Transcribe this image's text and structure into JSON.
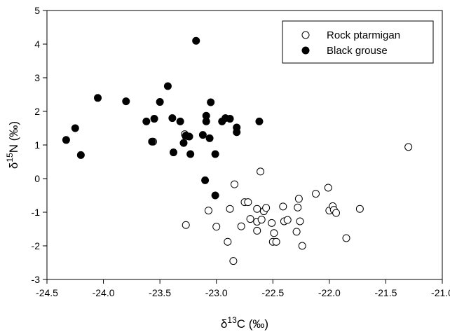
{
  "chart_data": {
    "type": "scatter",
    "title": "",
    "xlabel": {
      "prefix": "δ",
      "sup": "13",
      "rest": "C (‰)"
    },
    "ylabel": {
      "prefix": "δ",
      "sup": "15",
      "rest": "N (‰)"
    },
    "xlim": [
      -24.5,
      -21.0
    ],
    "ylim": [
      -3,
      5
    ],
    "xticks": [
      -24.5,
      -24.0,
      -23.5,
      -23.0,
      -22.5,
      -22.0,
      -21.5,
      -21.0
    ],
    "xtick_labels": [
      "-24.5",
      "-24.0",
      "-23.5",
      "-23.0",
      "-22.5",
      "-22.0",
      "-21.5",
      "-21.0"
    ],
    "yticks": [
      -3,
      -2,
      -1,
      0,
      1,
      2,
      3,
      4,
      5
    ],
    "ytick_labels": [
      "-3",
      "-2",
      "-1",
      "0",
      "1",
      "2",
      "3",
      "4",
      "5"
    ],
    "grid": false,
    "legend_position": "top-right",
    "series": [
      {
        "name": "Rock ptarmigan",
        "marker": "open-circle",
        "color": "#000000",
        "points": [
          [
            -23.28,
            1.32
          ],
          [
            -23.27,
            1.25
          ],
          [
            -23.56,
            1.1
          ],
          [
            -23.27,
            -1.38
          ],
          [
            -23.07,
            -0.95
          ],
          [
            -23.0,
            -1.43
          ],
          [
            -22.9,
            -1.88
          ],
          [
            -22.88,
            -0.9
          ],
          [
            -22.85,
            -2.45
          ],
          [
            -22.84,
            -0.17
          ],
          [
            -22.78,
            -1.42
          ],
          [
            -22.75,
            -0.7
          ],
          [
            -22.72,
            -0.7
          ],
          [
            -22.7,
            -1.2
          ],
          [
            -22.64,
            -0.9
          ],
          [
            -22.64,
            -1.28
          ],
          [
            -22.64,
            -1.55
          ],
          [
            -22.61,
            0.21
          ],
          [
            -22.6,
            -1.22
          ],
          [
            -22.58,
            -0.97
          ],
          [
            -22.56,
            -0.87
          ],
          [
            -22.51,
            -1.32
          ],
          [
            -22.5,
            -1.88
          ],
          [
            -22.49,
            -1.62
          ],
          [
            -22.47,
            -1.88
          ],
          [
            -22.41,
            -0.83
          ],
          [
            -22.4,
            -1.27
          ],
          [
            -22.37,
            -1.23
          ],
          [
            -22.29,
            -1.58
          ],
          [
            -22.28,
            -0.86
          ],
          [
            -22.27,
            -0.6
          ],
          [
            -22.26,
            -1.27
          ],
          [
            -22.24,
            -2.0
          ],
          [
            -22.12,
            -0.45
          ],
          [
            -22.01,
            -0.27
          ],
          [
            -22.0,
            -0.95
          ],
          [
            -21.97,
            -0.82
          ],
          [
            -21.96,
            -0.93
          ],
          [
            -21.94,
            -1.02
          ],
          [
            -21.85,
            -1.77
          ],
          [
            -21.73,
            -0.9
          ],
          [
            -21.3,
            0.94
          ]
        ]
      },
      {
        "name": "Black grouse",
        "marker": "filled-circle",
        "color": "#000000",
        "points": [
          [
            -24.33,
            1.15
          ],
          [
            -24.25,
            1.5
          ],
          [
            -24.2,
            0.7
          ],
          [
            -24.05,
            2.4
          ],
          [
            -23.8,
            2.3
          ],
          [
            -23.62,
            1.7
          ],
          [
            -23.57,
            1.1
          ],
          [
            -23.55,
            1.78
          ],
          [
            -23.5,
            2.28
          ],
          [
            -23.43,
            2.75
          ],
          [
            -23.39,
            1.8
          ],
          [
            -23.38,
            0.78
          ],
          [
            -23.32,
            1.7
          ],
          [
            -23.29,
            1.06
          ],
          [
            -23.27,
            1.28
          ],
          [
            -23.24,
            1.25
          ],
          [
            -23.23,
            0.73
          ],
          [
            -23.18,
            4.1
          ],
          [
            -23.12,
            1.3
          ],
          [
            -23.1,
            -0.05
          ],
          [
            -23.09,
            1.87
          ],
          [
            -23.09,
            1.7
          ],
          [
            -23.06,
            1.2
          ],
          [
            -23.05,
            2.27
          ],
          [
            -23.01,
            -0.5
          ],
          [
            -23.01,
            0.73
          ],
          [
            -22.95,
            1.7
          ],
          [
            -22.92,
            1.8
          ],
          [
            -22.88,
            1.78
          ],
          [
            -22.82,
            1.52
          ],
          [
            -22.82,
            1.38
          ],
          [
            -22.62,
            1.7
          ]
        ]
      }
    ]
  }
}
